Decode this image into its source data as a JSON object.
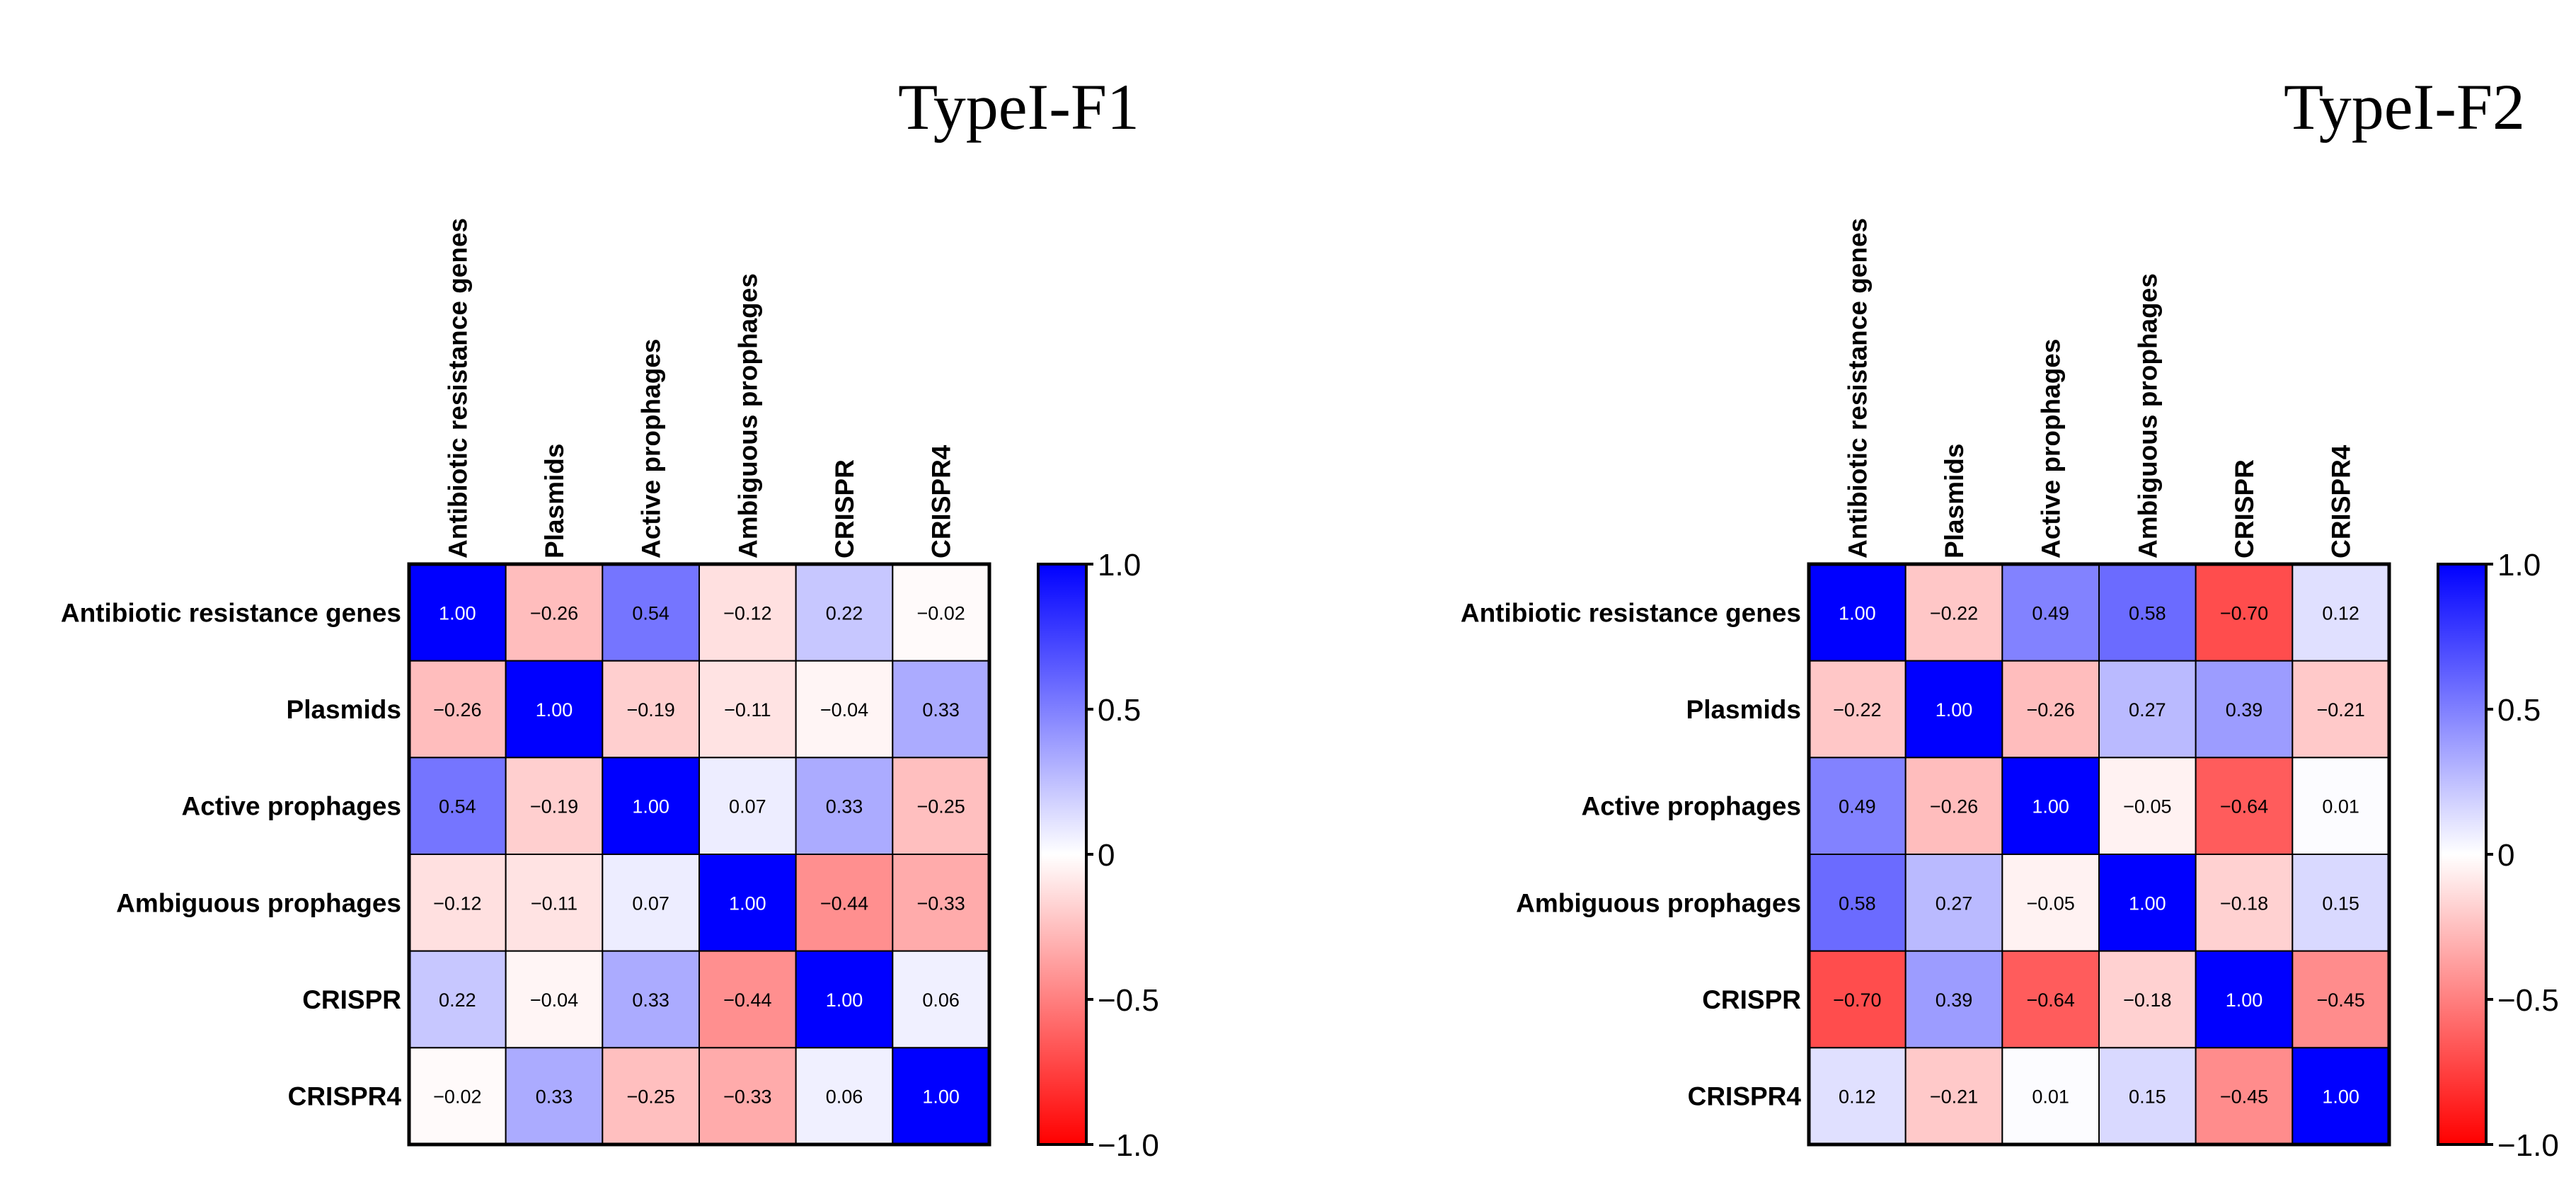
{
  "colors": {
    "positive": "#0000ff",
    "zero": "#ffffff",
    "negative": "#ff0000",
    "grid": "#000000"
  },
  "chart_data": [
    {
      "type": "heatmap",
      "title": "TypeI-F1",
      "labels": [
        "Antibiotic resistance genes",
        "Plasmids",
        "Active prophages",
        "Ambiguous prophages",
        "CRISPR",
        "CRISPR4"
      ],
      "matrix": [
        [
          1.0,
          -0.26,
          0.54,
          -0.12,
          0.22,
          -0.02
        ],
        [
          -0.26,
          1.0,
          -0.19,
          -0.11,
          -0.04,
          0.33
        ],
        [
          0.54,
          -0.19,
          1.0,
          0.07,
          0.33,
          -0.25
        ],
        [
          -0.12,
          -0.11,
          0.07,
          1.0,
          -0.44,
          -0.33
        ],
        [
          0.22,
          -0.04,
          0.33,
          -0.44,
          1.0,
          0.06
        ],
        [
          -0.02,
          0.33,
          -0.25,
          -0.33,
          0.06,
          1.0
        ]
      ],
      "colorbar": {
        "min": -1.0,
        "max": 1.0,
        "ticks": [
          "1.0",
          "0.5",
          "0",
          "−0.5",
          "−1.0"
        ],
        "tick_values": [
          1.0,
          0.5,
          0,
          -0.5,
          -1.0
        ]
      }
    },
    {
      "type": "heatmap",
      "title": "TypeI-F2",
      "labels": [
        "Antibiotic resistance genes",
        "Plasmids",
        "Active prophages",
        "Ambiguous prophages",
        "CRISPR",
        "CRISPR4"
      ],
      "matrix": [
        [
          1.0,
          -0.22,
          0.49,
          0.58,
          -0.7,
          0.12
        ],
        [
          -0.22,
          1.0,
          -0.26,
          0.27,
          0.39,
          -0.21
        ],
        [
          0.49,
          -0.26,
          1.0,
          -0.05,
          -0.64,
          0.01
        ],
        [
          0.58,
          0.27,
          -0.05,
          1.0,
          -0.18,
          0.15
        ],
        [
          -0.7,
          0.39,
          -0.64,
          -0.18,
          1.0,
          -0.45
        ],
        [
          0.12,
          -0.21,
          0.01,
          0.15,
          -0.45,
          1.0
        ]
      ],
      "colorbar": {
        "min": -1.0,
        "max": 1.0,
        "ticks": [
          "1.0",
          "0.5",
          "0",
          "−0.5",
          "−1.0"
        ],
        "tick_values": [
          1.0,
          0.5,
          0,
          -0.5,
          -1.0
        ]
      }
    }
  ]
}
